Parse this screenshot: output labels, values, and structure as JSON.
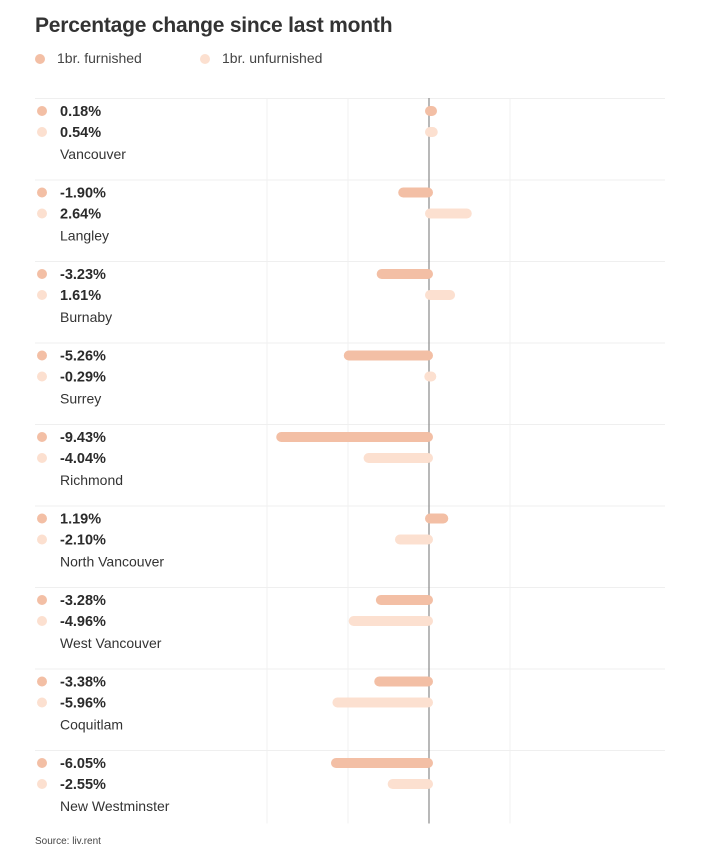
{
  "chart_data": {
    "type": "bar",
    "orientation": "horizontal",
    "title": "Percentage change since last month",
    "legend": {
      "placement": "top-left"
    },
    "grid": true,
    "xlim": [
      -12,
      3
    ],
    "categories": [
      "Vancouver",
      "Langley",
      "Burnaby",
      "Surrey",
      "Richmond",
      "North Vancouver",
      "West Vancouver",
      "Coquitlam",
      "New Westminster"
    ],
    "series": [
      {
        "name": "1br. furnished",
        "color": "#f3bfa5",
        "values": [
          0.18,
          -1.9,
          -3.23,
          -5.26,
          -9.43,
          1.19,
          -3.28,
          -3.38,
          -6.05
        ],
        "labels": [
          "0.18%",
          "-1.90%",
          "-3.23%",
          "-5.26%",
          "-9.43%",
          "1.19%",
          "-3.28%",
          "-3.38%",
          "-6.05%"
        ]
      },
      {
        "name": "1br. unfurnished",
        "color": "#fce0d0",
        "values": [
          0.54,
          2.64,
          1.61,
          -0.29,
          -4.04,
          -2.1,
          -4.96,
          -5.96,
          -2.55
        ],
        "labels": [
          "0.54%",
          "2.64%",
          "1.61%",
          "-0.29%",
          "-4.04%",
          "-2.10%",
          "-4.96%",
          "-5.96%",
          "-2.55%"
        ]
      }
    ]
  },
  "source": "Source: liv.rent"
}
